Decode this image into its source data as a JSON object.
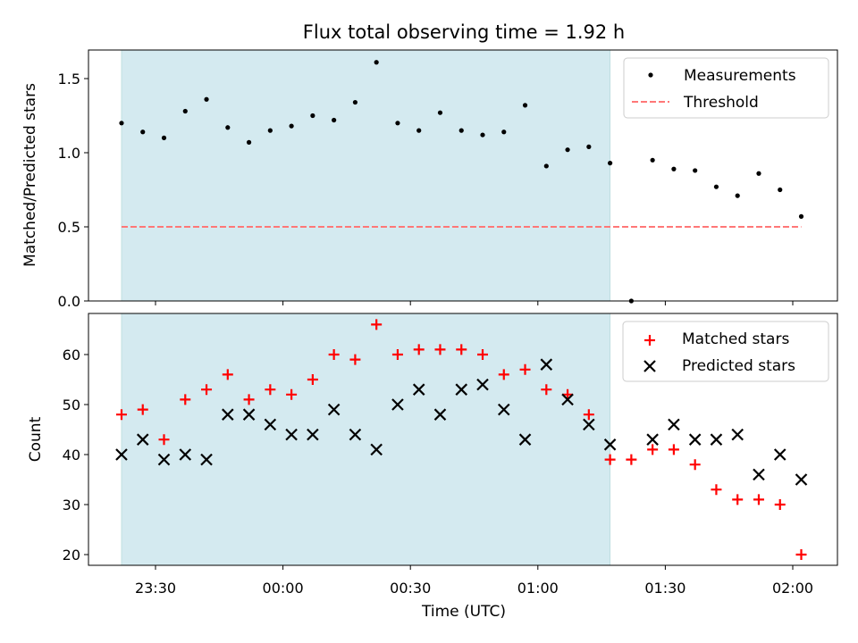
{
  "chart_data": {
    "type": "scatter",
    "title": "Flux total observing time = 1.92 h",
    "xlabel": "Time (UTC)",
    "x_ticks": [
      "23:30",
      "00:00",
      "00:30",
      "01:00",
      "01:30",
      "02:00"
    ],
    "times": [
      "23:22",
      "23:27",
      "23:32",
      "23:37",
      "23:42",
      "23:47",
      "23:52",
      "23:57",
      "00:02",
      "00:07",
      "00:12",
      "00:17",
      "00:22",
      "00:27",
      "00:32",
      "00:37",
      "00:42",
      "00:47",
      "00:52",
      "00:57",
      "01:02",
      "01:07",
      "01:12",
      "01:17",
      "01:22",
      "01:27",
      "01:32",
      "01:37",
      "01:42",
      "01:47",
      "01:52",
      "01:57",
      "02:02"
    ],
    "shaded_interval": [
      "23:22",
      "01:17"
    ],
    "shade_color": "#d4eaf0",
    "panels": [
      {
        "ylabel": "Matched/Predicted stars",
        "ylim": [
          0,
          1.7
        ],
        "yticks": [
          0.0,
          0.5,
          1.0,
          1.5
        ],
        "ytick_labels": [
          "0.0",
          "0.5",
          "1.0",
          "1.5"
        ],
        "series": [
          {
            "name": "Measurements",
            "marker": "dot",
            "color": "#000000",
            "values": [
              1.2,
              1.14,
              1.1,
              1.28,
              1.36,
              1.17,
              1.07,
              1.15,
              1.18,
              1.25,
              1.22,
              1.34,
              1.61,
              1.2,
              1.15,
              1.27,
              1.15,
              1.12,
              1.14,
              1.32,
              0.91,
              1.02,
              1.04,
              0.93,
              0.0,
              0.95,
              0.89,
              0.88,
              0.77,
              0.71,
              0.86,
              0.75,
              0.57
            ]
          },
          {
            "name": "Threshold",
            "marker": "dashed-line",
            "color": "#ff7777",
            "value": 0.5
          }
        ]
      },
      {
        "ylabel": "Count",
        "ylim": [
          18,
          68
        ],
        "yticks": [
          20,
          30,
          40,
          50,
          60
        ],
        "ytick_labels": [
          "20",
          "30",
          "40",
          "50",
          "60"
        ],
        "series": [
          {
            "name": "Matched stars",
            "marker": "plus",
            "color": "#ff0000",
            "values": [
              48,
              49,
              43,
              51,
              53,
              56,
              51,
              53,
              52,
              55,
              60,
              59,
              66,
              60,
              61,
              61,
              61,
              60,
              56,
              57,
              53,
              52,
              48,
              39,
              39,
              41,
              41,
              38,
              33,
              31,
              31,
              30,
              20
            ]
          },
          {
            "name": "Predicted stars",
            "marker": "x",
            "color": "#000000",
            "values": [
              40,
              43,
              39,
              40,
              39,
              48,
              48,
              46,
              44,
              44,
              49,
              44,
              41,
              50,
              53,
              48,
              53,
              54,
              49,
              43,
              58,
              51,
              46,
              42,
              null,
              43,
              46,
              43,
              43,
              44,
              36,
              40,
              35
            ]
          }
        ]
      }
    ]
  }
}
